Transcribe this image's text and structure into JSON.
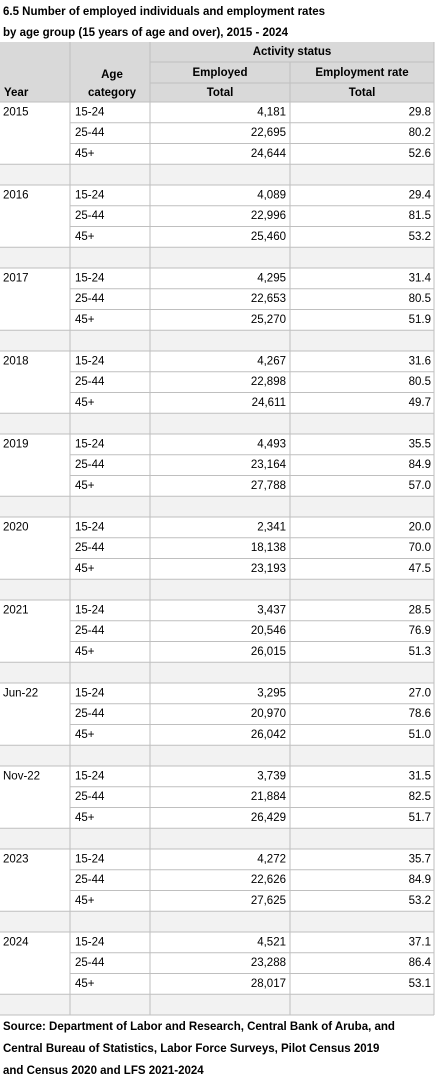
{
  "title": [
    "6.5 Number of employed individuals and employment rates",
    "by age group (15 years of age and over), 2015 - 2024"
  ],
  "header": {
    "year": "Year",
    "age_category": [
      "Age",
      "category"
    ],
    "activity_status": "Activity status",
    "employed": "Employed",
    "employment_rate": "Employment rate",
    "employed_sub": "Total",
    "rate_sub": "Total"
  },
  "groups": [
    {
      "year": "2015",
      "rows": [
        [
          "15-24",
          "4,181",
          "29.8"
        ],
        [
          "25-44",
          "22,695",
          "80.2"
        ],
        [
          "45+",
          "24,644",
          "52.6"
        ]
      ]
    },
    {
      "year": "2016",
      "rows": [
        [
          "15-24",
          "4,089",
          "29.4"
        ],
        [
          "25-44",
          "22,996",
          "81.5"
        ],
        [
          "45+",
          "25,460",
          "53.2"
        ]
      ]
    },
    {
      "year": "2017",
      "rows": [
        [
          "15-24",
          "4,295",
          "31.4"
        ],
        [
          "25-44",
          "22,653",
          "80.5"
        ],
        [
          "45+",
          "25,270",
          "51.9"
        ]
      ]
    },
    {
      "year": "2018",
      "rows": [
        [
          "15-24",
          "4,267",
          "31.6"
        ],
        [
          "25-44",
          "22,898",
          "80.5"
        ],
        [
          "45+",
          "24,611",
          "49.7"
        ]
      ]
    },
    {
      "year": "2019",
      "rows": [
        [
          "15-24",
          "4,493",
          "35.5"
        ],
        [
          "25-44",
          "23,164",
          "84.9"
        ],
        [
          "45+",
          "27,788",
          "57.0"
        ]
      ]
    },
    {
      "year": "2020",
      "rows": [
        [
          "15-24",
          "2,341",
          "20.0"
        ],
        [
          "25-44",
          "18,138",
          "70.0"
        ],
        [
          "45+",
          "23,193",
          "47.5"
        ]
      ]
    },
    {
      "year": "2021",
      "rows": [
        [
          "15-24",
          "3,437",
          "28.5"
        ],
        [
          "25-44",
          "20,546",
          "76.9"
        ],
        [
          "45+",
          "26,015",
          "51.3"
        ]
      ]
    },
    {
      "year": "Jun-22",
      "rows": [
        [
          "15-24",
          "3,295",
          "27.0"
        ],
        [
          "25-44",
          "20,970",
          "78.6"
        ],
        [
          "45+",
          "26,042",
          "51.0"
        ]
      ]
    },
    {
      "year": "Nov-22",
      "rows": [
        [
          "15-24",
          "3,739",
          "31.5"
        ],
        [
          "25-44",
          "21,884",
          "82.5"
        ],
        [
          "45+",
          "26,429",
          "51.7"
        ]
      ]
    },
    {
      "year": "2023",
      "rows": [
        [
          "15-24",
          "4,272",
          "35.7"
        ],
        [
          "25-44",
          "22,626",
          "84.9"
        ],
        [
          "45+",
          "27,625",
          "53.2"
        ]
      ]
    },
    {
      "year": "2024",
      "rows": [
        [
          "15-24",
          "4,521",
          "37.1"
        ],
        [
          "25-44",
          "23,288",
          "86.4"
        ],
        [
          "45+",
          "28,017",
          "53.1"
        ]
      ]
    }
  ],
  "source": [
    "Source: Department of Labor and Research, Central Bank of Aruba, and",
    "Central Bureau of Statistics, Labor Force Surveys, Pilot Census 2019",
    "and Census 2020 and LFS 2021-2024"
  ]
}
